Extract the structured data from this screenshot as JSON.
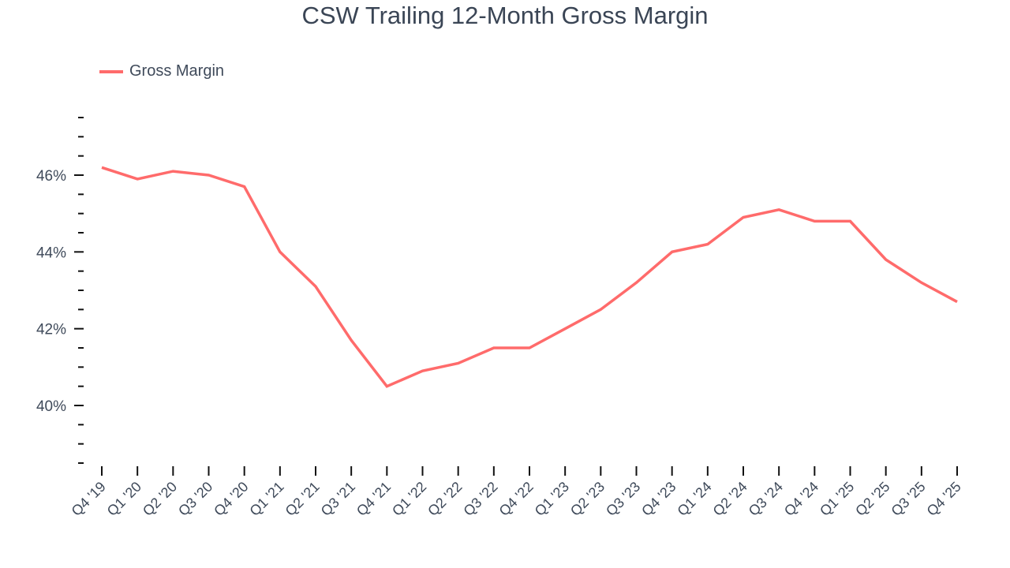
{
  "title": "CSW Trailing 12-Month Gross Margin",
  "legend": {
    "label": "Gross Margin",
    "color": "#ff6b6b"
  },
  "chart_data": {
    "type": "line",
    "title": "CSW Trailing 12-Month Gross Margin",
    "xlabel": "",
    "ylabel": "",
    "legend_position": "top-left",
    "grid": false,
    "ylim": [
      38.5,
      47.5
    ],
    "y_ticks": [
      40,
      42,
      44,
      46
    ],
    "y_tick_labels": [
      "40%",
      "42%",
      "44%",
      "46%"
    ],
    "y_minor_step": 0.5,
    "categories": [
      "Q4 '19",
      "Q1 '20",
      "Q2 '20",
      "Q3 '20",
      "Q4 '20",
      "Q1 '21",
      "Q2 '21",
      "Q3 '21",
      "Q4 '21",
      "Q1 '22",
      "Q2 '22",
      "Q3 '22",
      "Q4 '22",
      "Q1 '23",
      "Q2 '23",
      "Q3 '23",
      "Q4 '23",
      "Q1 '24",
      "Q2 '24",
      "Q3 '24",
      "Q4 '24",
      "Q1 '25",
      "Q2 '25",
      "Q3 '25",
      "Q4 '25"
    ],
    "series": [
      {
        "name": "Gross Margin",
        "color": "#ff6b6b",
        "values": [
          46.2,
          45.9,
          46.1,
          46.0,
          45.7,
          44.0,
          43.1,
          41.7,
          40.5,
          40.9,
          41.1,
          41.5,
          41.5,
          42.0,
          42.5,
          43.2,
          44.0,
          44.2,
          44.9,
          45.1,
          44.8,
          44.8,
          43.8,
          43.2,
          42.7
        ]
      }
    ]
  }
}
